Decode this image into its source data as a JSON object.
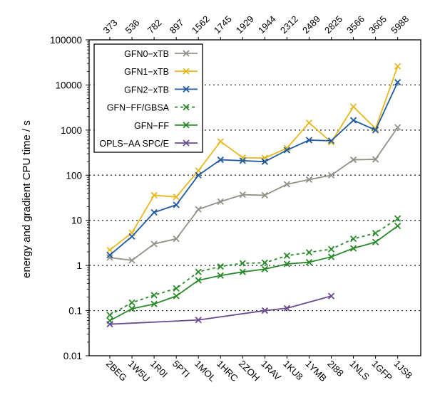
{
  "chart_data": {
    "type": "line",
    "title": "",
    "xlabel": "",
    "ylabel": "energy and gradient CPU time / s",
    "yscale": "log",
    "ylim": [
      0.01,
      100000
    ],
    "yticks": [
      0.01,
      0.1,
      1,
      10,
      100,
      1000,
      10000,
      100000
    ],
    "ytick_labels": [
      "0.01",
      "0.1",
      "1",
      "10",
      "100",
      "1000",
      "10000",
      "100000"
    ],
    "grid": "horizontal dotted at decades",
    "legend_position": "top-left",
    "categories": [
      "2BEG",
      "1W5U",
      "1R0I",
      "5PTI",
      "1MOL",
      "1HRC",
      "2ZOH",
      "1RAV",
      "1KU8",
      "1YMB",
      "2I88",
      "1NLS",
      "1GFP",
      "1JS8"
    ],
    "top_axis_labels": [
      "373",
      "536",
      "782",
      "897",
      "1562",
      "1745",
      "1929",
      "1944",
      "2312",
      "2489",
      "2825",
      "3566",
      "3605",
      "5988"
    ],
    "series": [
      {
        "name": "GFN0−xTB",
        "color": "#929287",
        "dash": false,
        "values": [
          1.5,
          1.3,
          3.0,
          3.9,
          17.5,
          26,
          37,
          36,
          63,
          80,
          100,
          220,
          225,
          1150
        ]
      },
      {
        "name": "GFN1−xTB",
        "color": "#e8b820",
        "dash": false,
        "values": [
          2.2,
          5.3,
          36,
          33,
          126,
          560,
          245,
          240,
          400,
          1450,
          540,
          3300,
          1080,
          26000
        ]
      },
      {
        "name": "GFN2−xTB",
        "color": "#1f5aa0",
        "dash": false,
        "values": [
          1.7,
          4.4,
          15,
          22,
          100,
          220,
          210,
          200,
          360,
          600,
          580,
          1650,
          1000,
          11500
        ]
      },
      {
        "name": "GFN−FF/GBSA",
        "color": "#2a8a2a",
        "dash": true,
        "values": [
          0.08,
          0.15,
          0.22,
          0.31,
          0.72,
          0.95,
          1.12,
          1.15,
          1.65,
          1.95,
          2.3,
          3.9,
          5.2,
          11
        ]
      },
      {
        "name": "GFN−FF",
        "color": "#2a8a2a",
        "dash": false,
        "values": [
          0.06,
          0.11,
          0.14,
          0.21,
          0.47,
          0.6,
          0.72,
          0.83,
          1.08,
          1.18,
          1.55,
          2.4,
          3.3,
          7.5
        ]
      },
      {
        "name": "OPLS−AA SPC/E",
        "color": "#6a4a90",
        "dash": false,
        "values": [
          0.05,
          null,
          null,
          null,
          0.062,
          null,
          null,
          0.1,
          0.113,
          null,
          0.21,
          null,
          null,
          null
        ]
      }
    ]
  }
}
